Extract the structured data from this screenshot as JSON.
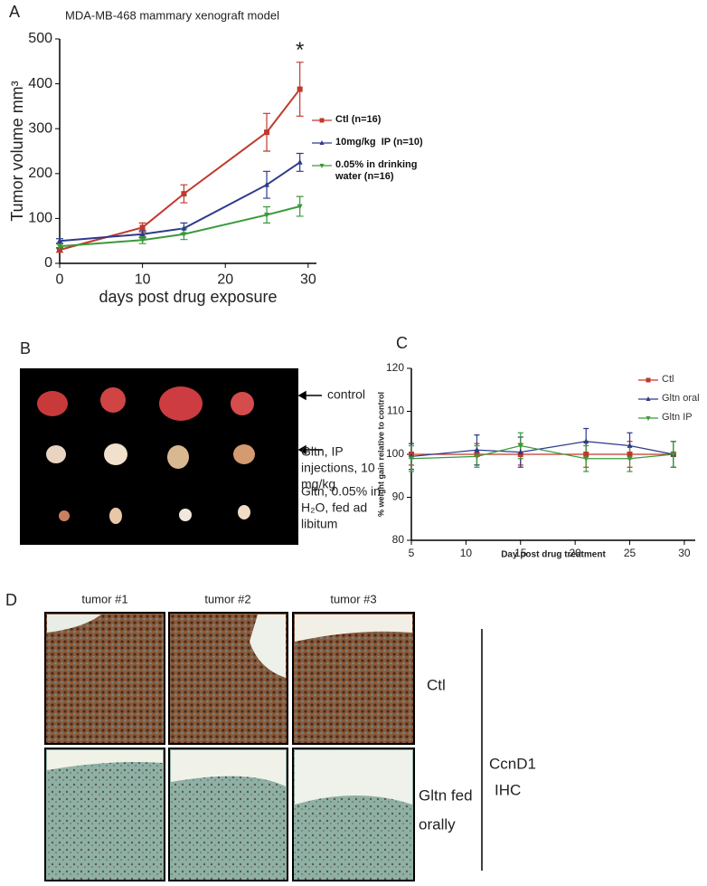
{
  "panel_labels": [
    "A",
    "B",
    "C",
    "D"
  ],
  "chart_data": [
    {
      "type": "line",
      "title": "MDA-MB-468 mammary xenograft model",
      "x_label": "days post drug exposure",
      "y_label": "Tumor volume mm³",
      "x": [
        0,
        10,
        15,
        25,
        29
      ],
      "xlim": [
        0,
        31
      ],
      "xticks": [
        0,
        10,
        20,
        30
      ],
      "ylim": [
        0,
        500
      ],
      "yticks": [
        0,
        100,
        200,
        300,
        400,
        500
      ],
      "legend": "right",
      "annotation": "*",
      "series": [
        {
          "name": "Ctl (n=16)",
          "color": "#c0392b",
          "marker": "square",
          "values": [
            30,
            80,
            155,
            292,
            388
          ],
          "errors": [
            5,
            10,
            20,
            42,
            60
          ]
        },
        {
          "name": "10mg/kg  IP (n=10)",
          "color": "#2e3a8c",
          "marker": "triangle-up",
          "values": [
            50,
            65,
            78,
            175,
            225
          ],
          "errors": [
            5,
            8,
            12,
            30,
            20
          ]
        },
        {
          "name": "0.05% in drinking water (n=16)",
          "color": "#3a9a3a",
          "marker": "triangle-down",
          "values": [
            38,
            52,
            65,
            108,
            127
          ],
          "errors": [
            5,
            8,
            12,
            18,
            22
          ]
        }
      ]
    },
    {
      "type": "line",
      "x_label": "Day post drug treatment",
      "y_label": "% weight gain relative to control",
      "x": [
        5,
        11,
        15,
        21,
        25,
        29
      ],
      "xlim": [
        5,
        31
      ],
      "xticks": [
        5,
        10,
        15,
        20,
        25,
        30
      ],
      "ylim": [
        80,
        120
      ],
      "yticks": [
        80,
        90,
        100,
        110,
        120
      ],
      "legend": "upper right",
      "series": [
        {
          "name": "Ctl",
          "color": "#c0392b",
          "marker": "square",
          "values": [
            100,
            100,
            100,
            100,
            100,
            100
          ],
          "errors": [
            2.5,
            2.5,
            2.5,
            3,
            3,
            3
          ]
        },
        {
          "name": "Gltn oral",
          "color": "#2e3a8c",
          "marker": "triangle-up",
          "values": [
            99.5,
            101,
            100.5,
            103,
            102,
            100
          ],
          "errors": [
            3,
            3.5,
            3.5,
            3,
            3,
            3
          ]
        },
        {
          "name": "Gltn IP",
          "color": "#3a9a3a",
          "marker": "triangle-down",
          "values": [
            99,
            99.5,
            102,
            99,
            99,
            100
          ],
          "errors": [
            3,
            2.5,
            3,
            3,
            3,
            3
          ]
        }
      ]
    }
  ],
  "panel_b": {
    "labels": [
      [
        "control"
      ],
      [
        "Gltn, IP",
        "injections, 10",
        "mg/kg"
      ],
      [
        "Gltn, 0.05% in",
        "H₂O, fed ad",
        "libitum"
      ]
    ]
  },
  "panel_d": {
    "columns": [
      "tumor #1",
      "tumor #2",
      "tumor #3"
    ],
    "rows": [
      [
        "Ctl"
      ],
      [
        "Gltn fed",
        "orally"
      ]
    ],
    "stain": [
      "CcnD1",
      "IHC"
    ]
  }
}
